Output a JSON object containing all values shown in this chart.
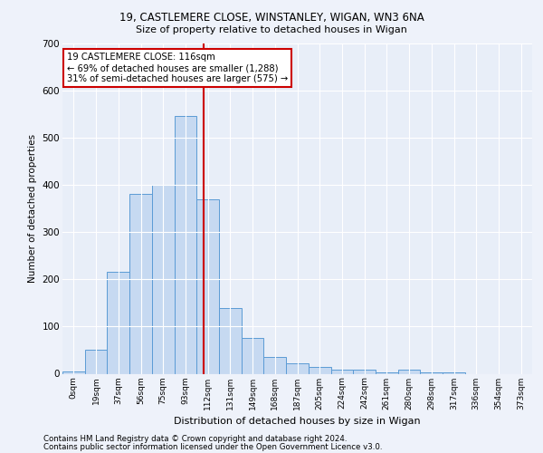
{
  "title1": "19, CASTLEMERE CLOSE, WINSTANLEY, WIGAN, WN3 6NA",
  "title2": "Size of property relative to detached houses in Wigan",
  "xlabel": "Distribution of detached houses by size in Wigan",
  "ylabel": "Number of detached properties",
  "bar_labels": [
    "0sqm",
    "19sqm",
    "37sqm",
    "56sqm",
    "75sqm",
    "93sqm",
    "112sqm",
    "131sqm",
    "149sqm",
    "168sqm",
    "187sqm",
    "205sqm",
    "224sqm",
    "242sqm",
    "261sqm",
    "280sqm",
    "298sqm",
    "317sqm",
    "336sqm",
    "354sqm",
    "373sqm"
  ],
  "bar_values": [
    5,
    50,
    215,
    380,
    400,
    545,
    370,
    140,
    75,
    35,
    22,
    15,
    8,
    8,
    3,
    8,
    2,
    3,
    0,
    0,
    0
  ],
  "bar_color": "#c6d9f1",
  "bar_edge_color": "#5b9bd5",
  "vline_color": "#cc0000",
  "annotation_text": "19 CASTLEMERE CLOSE: 116sqm\n← 69% of detached houses are smaller (1,288)\n31% of semi-detached houses are larger (575) →",
  "annotation_box_color": "white",
  "annotation_box_edge_color": "#cc0000",
  "ylim": [
    0,
    700
  ],
  "yticks": [
    0,
    100,
    200,
    300,
    400,
    500,
    600,
    700
  ],
  "footnote1": "Contains HM Land Registry data © Crown copyright and database right 2024.",
  "footnote2": "Contains public sector information licensed under the Open Government Licence v3.0.",
  "bg_color": "#eef2fa",
  "plot_bg_color": "#e8eef8",
  "grid_color": "white",
  "vline_index": 5.82
}
